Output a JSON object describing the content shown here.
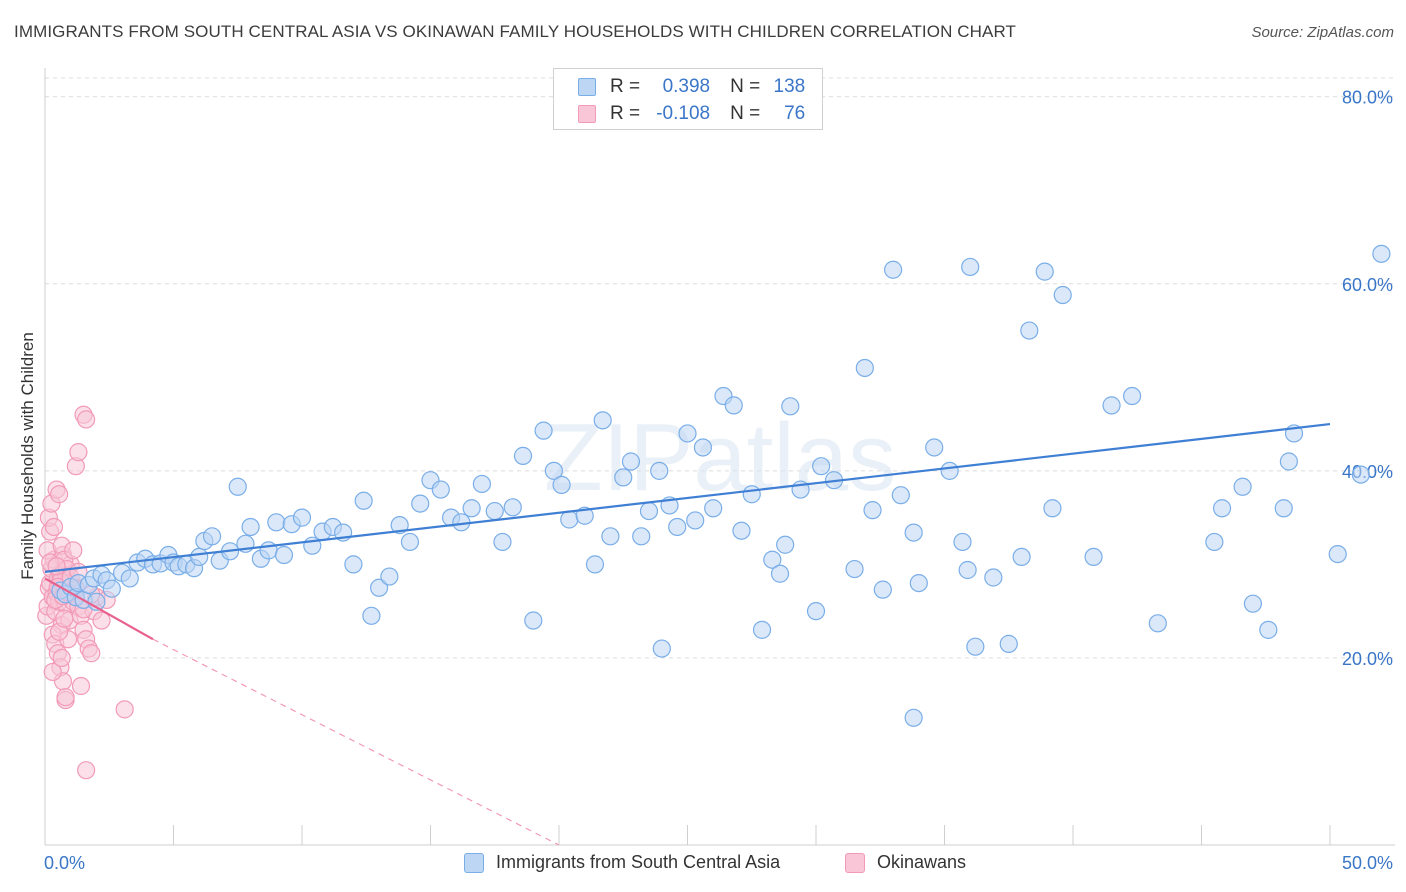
{
  "title": "IMMIGRANTS FROM SOUTH CENTRAL ASIA VS OKINAWAN FAMILY HOUSEHOLDS WITH CHILDREN CORRELATION CHART",
  "source": "Source: ZipAtlas.com",
  "watermark": "ZIPatlas",
  "legend_top": [
    {
      "r_label": "R =",
      "r_value": "0.398",
      "n_label": "N =",
      "n_value": "138",
      "color": "#7aaee8"
    },
    {
      "r_label": "R =",
      "r_value": "-0.108",
      "n_label": "N =",
      "n_value": "76",
      "color": "#f29ab8"
    }
  ],
  "legend_bottom": [
    {
      "label": "Immigrants from South Central Asia",
      "color": "#7aaee8"
    },
    {
      "label": "Okinawans",
      "color": "#f29ab8"
    }
  ],
  "colors": {
    "blue": "#3f7fd4",
    "pink": "#e8608c",
    "value_text": "#3a76c8",
    "grid": "#dcdcdc"
  },
  "chart_data": {
    "type": "scatter",
    "title": "IMMIGRANTS FROM SOUTH CENTRAL ASIA VS OKINAWAN FAMILY HOUSEHOLDS WITH CHILDREN CORRELATION CHART",
    "xlabel": "",
    "ylabel": "Family Households with Children",
    "xlim": [
      0,
      50
    ],
    "ylim": [
      0,
      82
    ],
    "x_tick_labels": [
      "0.0%",
      "50.0%"
    ],
    "y_ticks": [
      20,
      40,
      60,
      80
    ],
    "y_tick_labels": [
      "20.0%",
      "40.0%",
      "60.0%",
      "80.0%"
    ],
    "grid": true,
    "series": [
      {
        "name": "Immigrants from South Central Asia",
        "color": "#7aaee8",
        "trend": {
          "x": [
            0,
            50
          ],
          "y": [
            29.2,
            45.0
          ]
        },
        "points": [
          [
            0.6,
            27.2
          ],
          [
            0.8,
            26.8
          ],
          [
            1.0,
            27.6
          ],
          [
            1.2,
            26.5
          ],
          [
            1.3,
            28.0
          ],
          [
            1.5,
            26.2
          ],
          [
            1.7,
            27.8
          ],
          [
            1.9,
            28.5
          ],
          [
            2.0,
            26.0
          ],
          [
            2.2,
            28.9
          ],
          [
            2.4,
            28.3
          ],
          [
            2.6,
            27.4
          ],
          [
            3.0,
            29.1
          ],
          [
            3.3,
            28.5
          ],
          [
            3.6,
            30.2
          ],
          [
            3.9,
            30.6
          ],
          [
            4.2,
            30.0
          ],
          [
            4.5,
            30.1
          ],
          [
            4.8,
            31.0
          ],
          [
            5.0,
            30.2
          ],
          [
            5.2,
            29.8
          ],
          [
            5.5,
            30.0
          ],
          [
            5.8,
            29.6
          ],
          [
            6.0,
            30.8
          ],
          [
            6.2,
            32.5
          ],
          [
            6.5,
            33.0
          ],
          [
            6.8,
            30.4
          ],
          [
            7.2,
            31.4
          ],
          [
            7.5,
            38.3
          ],
          [
            7.8,
            32.2
          ],
          [
            8.0,
            34.0
          ],
          [
            8.4,
            30.6
          ],
          [
            8.7,
            31.5
          ],
          [
            9.0,
            34.5
          ],
          [
            9.3,
            31.0
          ],
          [
            9.6,
            34.3
          ],
          [
            10.0,
            35.0
          ],
          [
            10.4,
            32.0
          ],
          [
            10.8,
            33.5
          ],
          [
            11.2,
            34.0
          ],
          [
            11.6,
            33.4
          ],
          [
            12.0,
            30.0
          ],
          [
            12.4,
            36.8
          ],
          [
            12.7,
            24.5
          ],
          [
            13.0,
            27.5
          ],
          [
            13.4,
            28.7
          ],
          [
            13.8,
            34.2
          ],
          [
            14.2,
            32.4
          ],
          [
            14.6,
            36.5
          ],
          [
            15.0,
            39.0
          ],
          [
            15.4,
            38.0
          ],
          [
            15.8,
            35.0
          ],
          [
            16.2,
            34.5
          ],
          [
            16.6,
            36.0
          ],
          [
            17.0,
            38.6
          ],
          [
            17.5,
            35.7
          ],
          [
            17.8,
            32.4
          ],
          [
            18.2,
            36.1
          ],
          [
            18.6,
            41.6
          ],
          [
            19.0,
            24.0
          ],
          [
            19.4,
            44.3
          ],
          [
            19.8,
            40.0
          ],
          [
            20.1,
            38.5
          ],
          [
            20.4,
            34.8
          ],
          [
            21.0,
            35.2
          ],
          [
            21.4,
            30.0
          ],
          [
            21.7,
            45.4
          ],
          [
            22.0,
            33.0
          ],
          [
            22.5,
            39.3
          ],
          [
            22.8,
            41.0
          ],
          [
            23.2,
            33.0
          ],
          [
            23.5,
            35.7
          ],
          [
            23.9,
            40.0
          ],
          [
            24.3,
            36.3
          ],
          [
            24.6,
            34.0
          ],
          [
            25.0,
            44.0
          ],
          [
            25.3,
            34.7
          ],
          [
            25.6,
            42.5
          ],
          [
            26.0,
            36.0
          ],
          [
            26.4,
            48.0
          ],
          [
            26.8,
            47.0
          ],
          [
            27.1,
            33.6
          ],
          [
            27.5,
            37.5
          ],
          [
            27.9,
            23.0
          ],
          [
            28.3,
            30.5
          ],
          [
            28.6,
            29.0
          ],
          [
            29.0,
            46.9
          ],
          [
            29.4,
            38.0
          ],
          [
            30.0,
            25.0
          ],
          [
            30.2,
            40.5
          ],
          [
            30.7,
            39.0
          ],
          [
            31.5,
            29.5
          ],
          [
            31.9,
            51.0
          ],
          [
            32.2,
            35.8
          ],
          [
            32.6,
            27.3
          ],
          [
            33.0,
            61.5
          ],
          [
            33.3,
            37.4
          ],
          [
            33.8,
            33.4
          ],
          [
            34.0,
            28.0
          ],
          [
            34.6,
            42.5
          ],
          [
            35.2,
            40.0
          ],
          [
            35.7,
            32.4
          ],
          [
            35.9,
            29.4
          ],
          [
            36.2,
            21.2
          ],
          [
            36.9,
            28.6
          ],
          [
            37.5,
            21.5
          ],
          [
            38.0,
            30.8
          ],
          [
            38.3,
            55.0
          ],
          [
            38.9,
            61.3
          ],
          [
            39.2,
            36.0
          ],
          [
            39.6,
            58.8
          ],
          [
            40.8,
            30.8
          ],
          [
            41.5,
            47.0
          ],
          [
            42.3,
            48.0
          ],
          [
            43.3,
            23.7
          ],
          [
            45.5,
            32.4
          ],
          [
            45.8,
            36.0
          ],
          [
            46.6,
            38.3
          ],
          [
            47.0,
            25.8
          ],
          [
            47.6,
            23.0
          ],
          [
            48.2,
            36.0
          ],
          [
            48.4,
            41.0
          ],
          [
            48.6,
            44.0
          ],
          [
            50.3,
            31.1
          ],
          [
            51.2,
            39.6
          ],
          [
            52.0,
            63.2
          ],
          [
            36.0,
            61.8
          ],
          [
            28.8,
            32.1
          ],
          [
            33.8,
            13.6
          ],
          [
            24.0,
            21.0
          ]
        ]
      },
      {
        "name": "Okinawans",
        "color": "#f29ab8",
        "trend": {
          "x": [
            0,
            4.2
          ],
          "y": [
            28.5,
            22.0
          ]
        },
        "trend_extension": {
          "x": [
            4.2,
            20
          ],
          "y": [
            22.0,
            0
          ]
        },
        "points": [
          [
            0.05,
            24.5
          ],
          [
            0.1,
            25.5
          ],
          [
            0.15,
            27.5
          ],
          [
            0.2,
            28.0
          ],
          [
            0.25,
            29.5
          ],
          [
            0.3,
            26.5
          ],
          [
            0.35,
            30.5
          ],
          [
            0.4,
            25.0
          ],
          [
            0.45,
            27.0
          ],
          [
            0.5,
            28.5
          ],
          [
            0.55,
            26.0
          ],
          [
            0.6,
            29.0
          ],
          [
            0.65,
            23.5
          ],
          [
            0.7,
            31.0
          ],
          [
            0.75,
            27.8
          ],
          [
            0.8,
            25.8
          ],
          [
            0.85,
            28.8
          ],
          [
            0.9,
            27.2
          ],
          [
            0.95,
            24.0
          ],
          [
            1.0,
            26.8
          ],
          [
            0.1,
            31.5
          ],
          [
            0.2,
            33.5
          ],
          [
            0.3,
            22.5
          ],
          [
            0.4,
            21.5
          ],
          [
            0.5,
            20.5
          ],
          [
            0.6,
            19.0
          ],
          [
            0.7,
            17.5
          ],
          [
            0.8,
            15.5
          ],
          [
            0.9,
            22.0
          ],
          [
            1.0,
            30.0
          ],
          [
            0.15,
            35.0
          ],
          [
            0.25,
            36.5
          ],
          [
            0.35,
            34.0
          ],
          [
            0.45,
            38.0
          ],
          [
            0.55,
            37.5
          ],
          [
            0.65,
            32.0
          ],
          [
            0.75,
            30.5
          ],
          [
            0.85,
            29.5
          ],
          [
            0.95,
            28.0
          ],
          [
            1.1,
            26.0
          ],
          [
            1.2,
            27.5
          ],
          [
            1.3,
            25.5
          ],
          [
            1.4,
            24.5
          ],
          [
            1.5,
            23.0
          ],
          [
            1.6,
            22.0
          ],
          [
            1.7,
            21.0
          ],
          [
            1.8,
            20.5
          ],
          [
            1.2,
            40.5
          ],
          [
            1.3,
            42.0
          ],
          [
            1.5,
            46.0
          ],
          [
            1.6,
            45.5
          ],
          [
            1.1,
            31.5
          ],
          [
            1.9,
            25.0
          ],
          [
            2.0,
            26.5
          ],
          [
            2.2,
            24.0
          ],
          [
            1.4,
            17.0
          ],
          [
            0.8,
            15.8
          ],
          [
            1.6,
            8.0
          ],
          [
            3.1,
            14.5
          ],
          [
            0.3,
            18.5
          ],
          [
            0.4,
            26.2
          ],
          [
            0.6,
            28.2
          ],
          [
            0.5,
            27.6
          ],
          [
            0.7,
            26.6
          ],
          [
            0.9,
            27.0
          ],
          [
            1.0,
            28.6
          ],
          [
            1.2,
            27.3
          ],
          [
            1.3,
            29.2
          ],
          [
            0.2,
            30.2
          ],
          [
            0.45,
            29.8
          ],
          [
            0.55,
            22.8
          ],
          [
            0.65,
            20.0
          ],
          [
            0.75,
            24.2
          ],
          [
            1.5,
            25.2
          ],
          [
            1.8,
            26.8
          ],
          [
            2.4,
            26.2
          ]
        ]
      }
    ]
  }
}
